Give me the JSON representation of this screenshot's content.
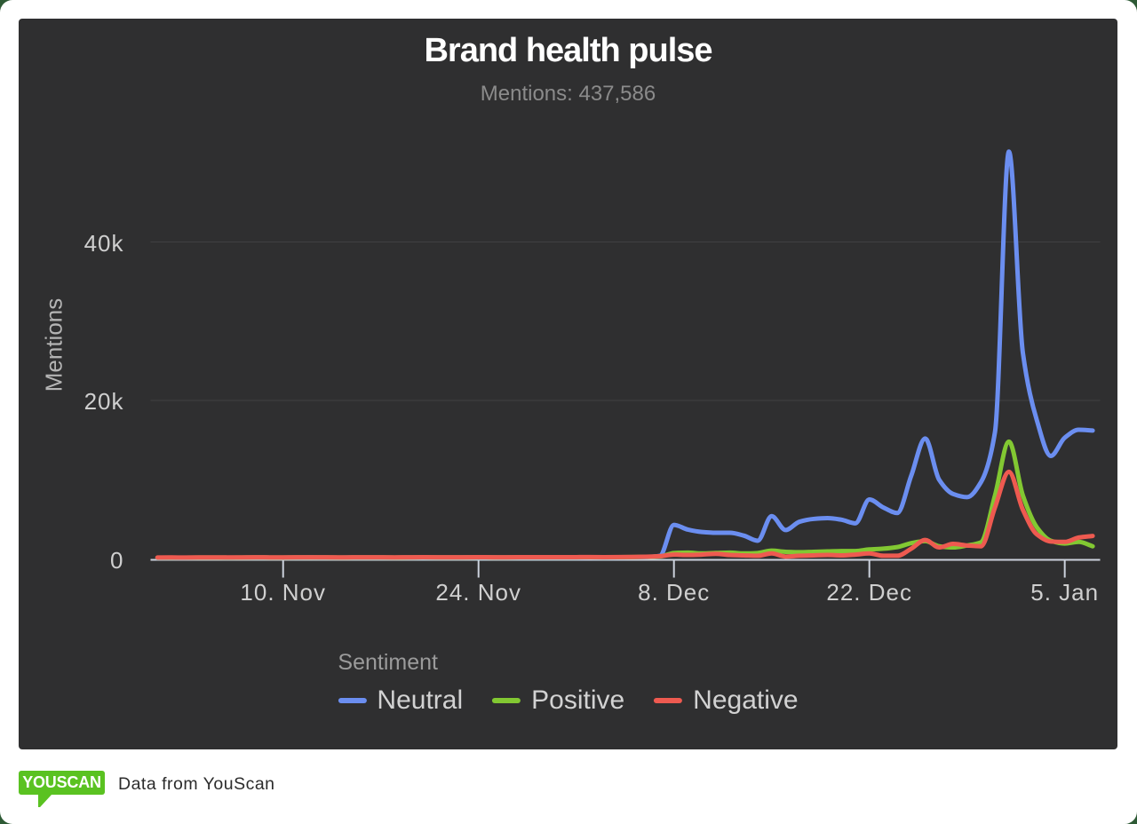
{
  "page": {
    "background_color": "#2e5a35",
    "card_color": "#ffffff"
  },
  "chart": {
    "panel_color": "#2f2f30",
    "grid_color": "#404042",
    "axis_line_color": "#ccd2dd",
    "title_color": "#ffffff",
    "subtitle_color": "#8b8b8b",
    "label_color": "#cfcfcf"
  },
  "chart_data": {
    "type": "line",
    "title": "Brand health pulse",
    "subtitle": "Mentions: 437,586",
    "ylabel": "Mentions",
    "xlabel": "",
    "ylim": [
      0,
      54300
    ],
    "grid": true,
    "legend_position": "bottom-center",
    "legend_title": "Sentiment",
    "y_ticks": [
      {
        "value": 0,
        "label": "0"
      },
      {
        "value": 20000,
        "label": "20k"
      },
      {
        "value": 40000,
        "label": "40k"
      }
    ],
    "x_point_count": 68,
    "x_ticks": [
      {
        "index": 9,
        "label": "10. Nov"
      },
      {
        "index": 23,
        "label": "24. Nov"
      },
      {
        "index": 37,
        "label": "8. Dec"
      },
      {
        "index": 51,
        "label": "22. Dec"
      },
      {
        "index": 65,
        "label": "5. Jan"
      }
    ],
    "series": [
      {
        "name": "Neutral",
        "color": "#6b8ef0",
        "values": [
          150,
          160,
          155,
          170,
          165,
          160,
          170,
          180,
          175,
          170,
          180,
          190,
          180,
          170,
          180,
          185,
          180,
          175,
          185,
          190,
          180,
          185,
          190,
          195,
          190,
          185,
          195,
          200,
          190,
          195,
          200,
          205,
          200,
          210,
          220,
          250,
          400,
          4300,
          3700,
          3400,
          3300,
          3300,
          2950,
          2300,
          5400,
          3650,
          4700,
          5050,
          5150,
          4950,
          4500,
          7500,
          6500,
          5800,
          10500,
          15200,
          10000,
          8200,
          7800,
          9700,
          16000,
          51400,
          26000,
          17500,
          13000,
          15300,
          16300,
          16200
        ]
      },
      {
        "name": "Positive",
        "color": "#82c832",
        "values": [
          165,
          175,
          170,
          185,
          180,
          175,
          185,
          195,
          185,
          180,
          190,
          200,
          190,
          180,
          195,
          200,
          190,
          185,
          195,
          205,
          190,
          195,
          200,
          210,
          200,
          195,
          205,
          215,
          205,
          210,
          215,
          220,
          210,
          220,
          235,
          265,
          320,
          750,
          800,
          700,
          750,
          800,
          700,
          750,
          1050,
          900,
          850,
          900,
          950,
          1000,
          1000,
          1200,
          1300,
          1500,
          2000,
          2250,
          1600,
          1450,
          1700,
          2100,
          8000,
          14800,
          8000,
          4000,
          2300,
          1950,
          2150,
          1600
        ]
      },
      {
        "name": "Negative",
        "color": "#ee5a50",
        "values": [
          180,
          190,
          185,
          200,
          195,
          190,
          200,
          210,
          200,
          195,
          205,
          215,
          205,
          195,
          210,
          215,
          205,
          200,
          210,
          220,
          205,
          210,
          215,
          225,
          215,
          210,
          220,
          230,
          220,
          225,
          230,
          235,
          225,
          235,
          250,
          280,
          350,
          550,
          500,
          550,
          650,
          500,
          450,
          400,
          700,
          300,
          400,
          450,
          500,
          450,
          550,
          700,
          400,
          400,
          1300,
          2400,
          1450,
          1900,
          1700,
          1600,
          6500,
          11000,
          6200,
          3100,
          2200,
          2150,
          2700,
          2900
        ]
      }
    ]
  },
  "footer": {
    "logo_text": "YOUSCAN",
    "logo_color": "#5ac221",
    "caption": "Data from YouScan"
  }
}
